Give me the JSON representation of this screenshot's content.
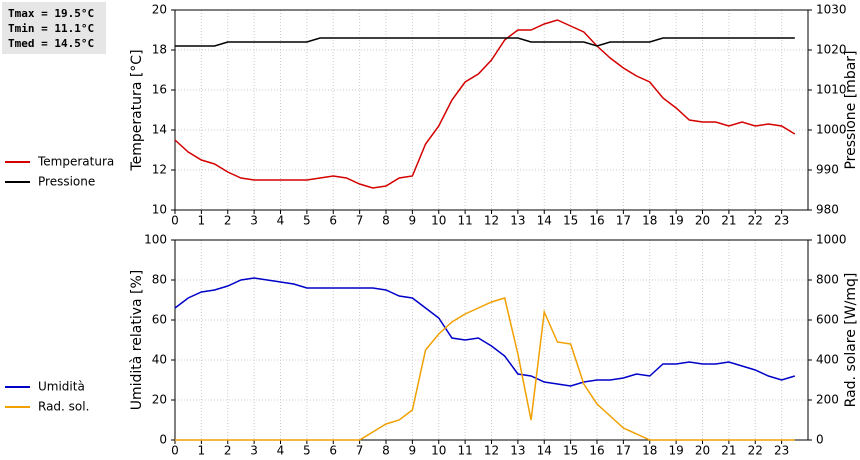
{
  "summary": [
    "Tmax = 19.5°C",
    "Tmin = 11.1°C",
    "Tmed = 14.5°C"
  ],
  "chart_data": [
    {
      "type": "line",
      "ylabel": "Temperatura [°C]",
      "y2label": "Pressione [mbar]",
      "x": [
        0,
        0.5,
        1,
        1.5,
        2,
        2.5,
        3,
        3.5,
        4,
        4.5,
        5,
        5.5,
        6,
        6.5,
        7,
        7.5,
        8,
        8.5,
        9,
        9.5,
        10,
        10.5,
        11,
        11.5,
        12,
        12.5,
        13,
        13.5,
        14,
        14.5,
        15,
        15.5,
        16,
        16.5,
        17,
        17.5,
        18,
        18.5,
        19,
        19.5,
        20,
        20.5,
        21,
        21.5,
        22,
        22.5,
        23,
        23.5
      ],
      "xlim": [
        0,
        24
      ],
      "xticks": [
        0,
        1,
        2,
        3,
        4,
        5,
        6,
        7,
        8,
        9,
        10,
        11,
        12,
        13,
        14,
        15,
        16,
        17,
        18,
        19,
        20,
        21,
        22,
        23
      ],
      "ylim": [
        10,
        20
      ],
      "yticks": [
        10,
        12,
        14,
        16,
        18,
        20
      ],
      "y2lim": [
        980,
        1030
      ],
      "y2ticks": [
        980,
        990,
        1000,
        1010,
        1020,
        1030
      ],
      "grid": true,
      "series": [
        {
          "name": "Temperatura",
          "color": "#d40000",
          "values": [
            13.5,
            12.9,
            12.5,
            12.3,
            11.9,
            11.6,
            11.5,
            11.5,
            11.5,
            11.5,
            11.5,
            11.6,
            11.7,
            11.6,
            11.3,
            11.1,
            11.2,
            11.6,
            11.7,
            13.3,
            14.2,
            15.5,
            16.4,
            16.8,
            17.5,
            18.5,
            19.0,
            19.0,
            19.3,
            19.5,
            19.2,
            18.9,
            18.2,
            17.6,
            17.1,
            16.7,
            16.4,
            15.6,
            15.1,
            14.5,
            14.4,
            14.4,
            14.2,
            14.4,
            14.2,
            14.3,
            14.2,
            13.8
          ]
        },
        {
          "name": "Pressione",
          "color": "#000000",
          "axis": "y2",
          "values": [
            1021,
            1021,
            1021,
            1021,
            1022,
            1022,
            1022,
            1022,
            1022,
            1022,
            1022,
            1023,
            1023,
            1023,
            1023,
            1023,
            1023,
            1023,
            1023,
            1023,
            1023,
            1023,
            1023,
            1023,
            1023,
            1023,
            1023,
            1022,
            1022,
            1022,
            1022,
            1022,
            1021,
            1022,
            1022,
            1022,
            1022,
            1023,
            1023,
            1023,
            1023,
            1023,
            1023,
            1023,
            1023,
            1023,
            1023,
            1023
          ]
        }
      ]
    },
    {
      "type": "line",
      "ylabel": "Umidità relativa [%]",
      "y2label": "Rad. solare [W/mq]",
      "x": [
        0,
        0.5,
        1,
        1.5,
        2,
        2.5,
        3,
        3.5,
        4,
        4.5,
        5,
        5.5,
        6,
        6.5,
        7,
        7.5,
        8,
        8.5,
        9,
        9.5,
        10,
        10.5,
        11,
        11.5,
        12,
        12.5,
        13,
        13.5,
        14,
        14.5,
        15,
        15.5,
        16,
        16.5,
        17,
        17.5,
        18,
        18.5,
        19,
        19.5,
        20,
        20.5,
        21,
        21.5,
        22,
        22.5,
        23,
        23.5
      ],
      "xlim": [
        0,
        24
      ],
      "xticks": [
        0,
        1,
        2,
        3,
        4,
        5,
        6,
        7,
        8,
        9,
        10,
        11,
        12,
        13,
        14,
        15,
        16,
        17,
        18,
        19,
        20,
        21,
        22,
        23
      ],
      "ylim": [
        0,
        100
      ],
      "yticks": [
        0,
        20,
        40,
        60,
        80,
        100
      ],
      "y2lim": [
        0,
        1000
      ],
      "y2ticks": [
        0,
        200,
        400,
        600,
        800,
        1000
      ],
      "grid": true,
      "series": [
        {
          "name": "Umidità",
          "color": "#0000c8",
          "values": [
            66,
            71,
            74,
            75,
            77,
            80,
            81,
            80,
            79,
            78,
            76,
            76,
            76,
            76,
            76,
            76,
            75,
            72,
            71,
            66,
            61,
            51,
            50,
            51,
            47,
            42,
            33,
            32,
            29,
            28,
            27,
            29,
            30,
            30,
            31,
            33,
            32,
            38,
            38,
            39,
            38,
            38,
            39,
            37,
            35,
            32,
            30,
            32
          ]
        },
        {
          "name": "Rad. sol.",
          "color": "#f0a000",
          "axis": "y2",
          "values": [
            0,
            0,
            0,
            0,
            0,
            0,
            0,
            0,
            0,
            0,
            0,
            0,
            0,
            0,
            0,
            40,
            80,
            100,
            150,
            450,
            530,
            590,
            630,
            660,
            690,
            710,
            430,
            100,
            640,
            490,
            480,
            280,
            180,
            120,
            60,
            30,
            0,
            0,
            0,
            0,
            0,
            0,
            0,
            0,
            0,
            0,
            0,
            0
          ]
        }
      ]
    }
  ]
}
